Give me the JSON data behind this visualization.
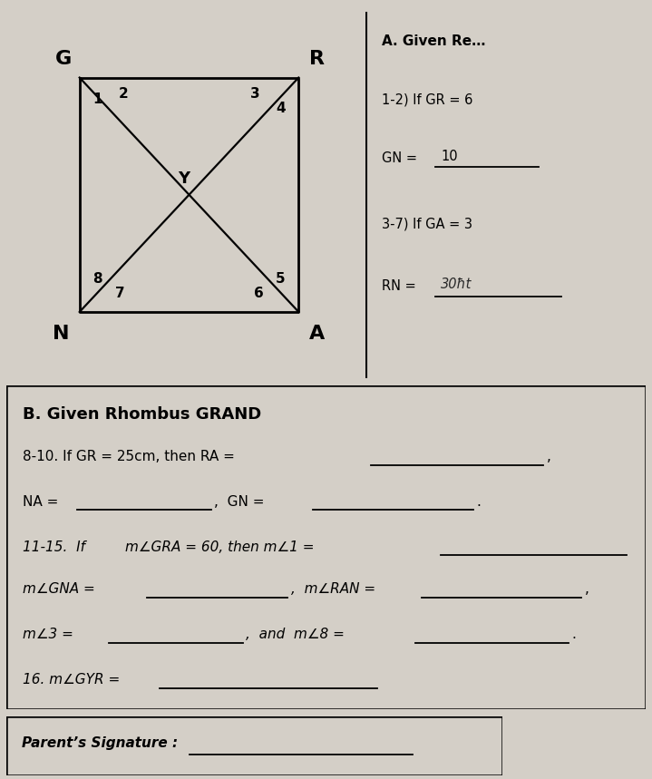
{
  "bg_color": "#d4cfc7",
  "box_color": "#eceae5",
  "fig_width": 7.19,
  "fig_height": 8.59,
  "label_G": "G",
  "label_R": "R",
  "label_N": "N",
  "label_A": "A",
  "label_Y": "Y",
  "angle_labels": [
    "1",
    "2",
    "3",
    "4",
    "5",
    "6",
    "7",
    "8"
  ],
  "section_A_title": "A. Given Re…",
  "line1": "1-2) If GR = 6",
  "line2_pre": "GN = ",
  "line2_ans": "10",
  "line3": "3-7) If GA = 3",
  "line4_pre": "RN = ",
  "line4_ans": "30ħt",
  "section_B_title": "B. Given Rhombus GRAND",
  "parent_sig_label": "Parent’s Signature :"
}
